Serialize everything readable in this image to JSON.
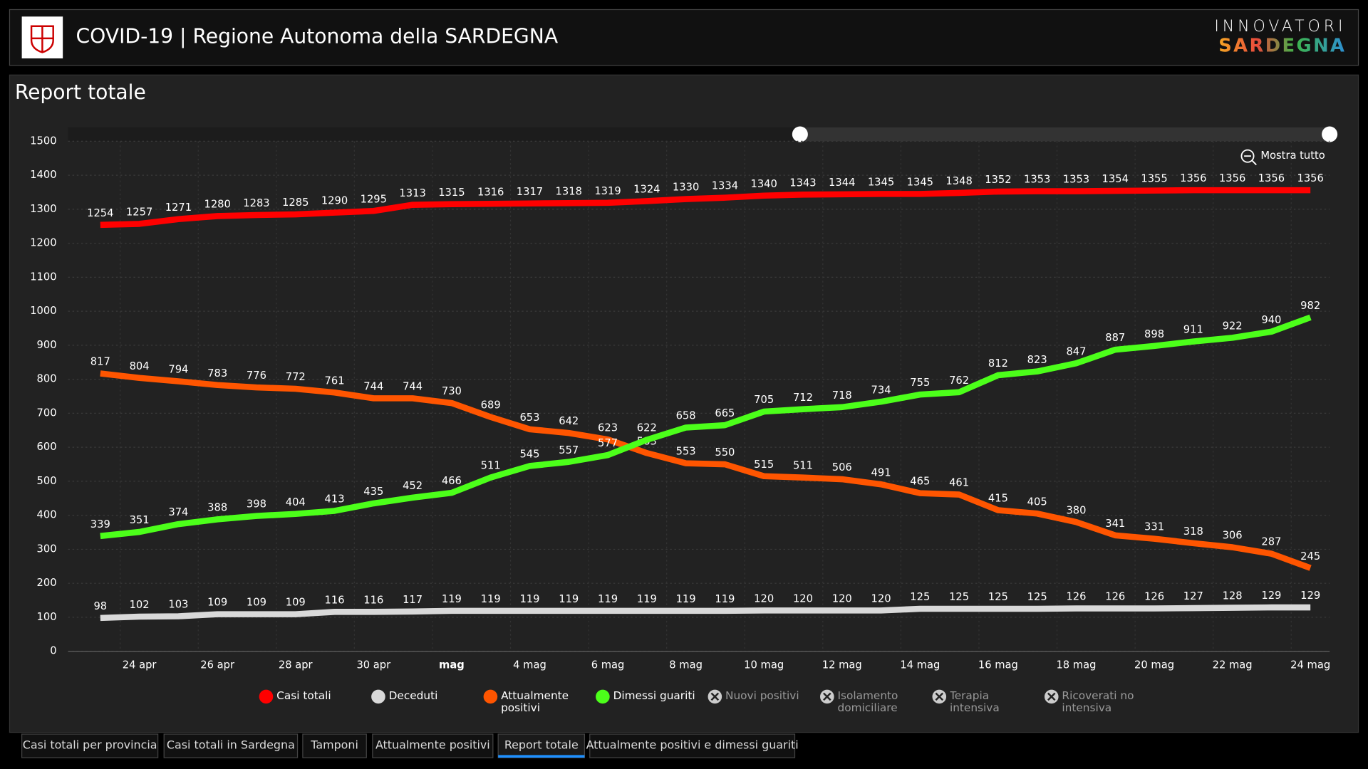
{
  "header": {
    "title": "COVID-19 | Regione Autonoma della SARDEGNA",
    "brand_top": "INNOVATORI",
    "brand_bottom": "SARDEGNA"
  },
  "chart_data": {
    "type": "line",
    "title": "Report totale",
    "zoom_button": "Mostra tutto",
    "categories": [
      null,
      "24 apr",
      null,
      "26 apr",
      null,
      "28 apr",
      null,
      "30 apr",
      null,
      "mag",
      null,
      "4 mag",
      null,
      "6 mag",
      null,
      "8 mag",
      null,
      "10 mag",
      null,
      "12 mag",
      null,
      "14 mag",
      null,
      "16 mag",
      null,
      "18 mag",
      null,
      "20 mag",
      null,
      "22 mag",
      null,
      "24 mag"
    ],
    "ylim": [
      0,
      1500
    ],
    "yticks": [
      0,
      100,
      200,
      300,
      400,
      500,
      600,
      700,
      800,
      900,
      1000,
      1100,
      1200,
      1300,
      1400,
      1500
    ],
    "grid": true,
    "series": [
      {
        "name": "Casi totali",
        "color": "#ff0000",
        "values": [
          1254,
          1257,
          1271,
          1280,
          1283,
          1285,
          1290,
          1295,
          1313,
          1315,
          1316,
          1317,
          1318,
          1319,
          1324,
          1330,
          1334,
          1340,
          1343,
          1344,
          1345,
          1345,
          1348,
          1352,
          1353,
          1353,
          1354,
          1355,
          1356,
          1356,
          1356,
          1356
        ]
      },
      {
        "name": "Deceduti",
        "color": "#d9d9d9",
        "values": [
          98,
          102,
          103,
          109,
          109,
          109,
          116,
          116,
          117,
          119,
          119,
          119,
          119,
          119,
          119,
          119,
          119,
          120,
          120,
          120,
          120,
          125,
          125,
          125,
          125,
          126,
          126,
          126,
          127,
          128,
          129,
          129
        ]
      },
      {
        "name": "Attualmente positivi",
        "color": "#ff5500",
        "values": [
          817,
          804,
          794,
          783,
          776,
          772,
          761,
          744,
          744,
          730,
          689,
          653,
          642,
          623,
          583,
          553,
          550,
          515,
          511,
          506,
          491,
          465,
          461,
          415,
          405,
          380,
          341,
          331,
          318,
          306,
          287,
          245
        ]
      },
      {
        "name": "Dimessi guariti",
        "color": "#4cff1a",
        "values": [
          339,
          351,
          374,
          388,
          398,
          404,
          413,
          435,
          452,
          466,
          511,
          545,
          557,
          577,
          622,
          658,
          665,
          705,
          712,
          718,
          734,
          755,
          762,
          812,
          823,
          847,
          887,
          898,
          911,
          922,
          940,
          982
        ]
      }
    ],
    "legend_inactive": [
      "Nuovi positivi",
      "Isolamento domiciliare",
      "Terapia intensiva",
      "Ricoverati no intensiva"
    ]
  },
  "tabs": [
    "Casi totali per provincia",
    "Casi totali in Sardegna",
    "Tamponi",
    "Attualmente positivi",
    "Report totale",
    "Attualmente positivi e dimessi guariti"
  ],
  "active_tab": 4
}
